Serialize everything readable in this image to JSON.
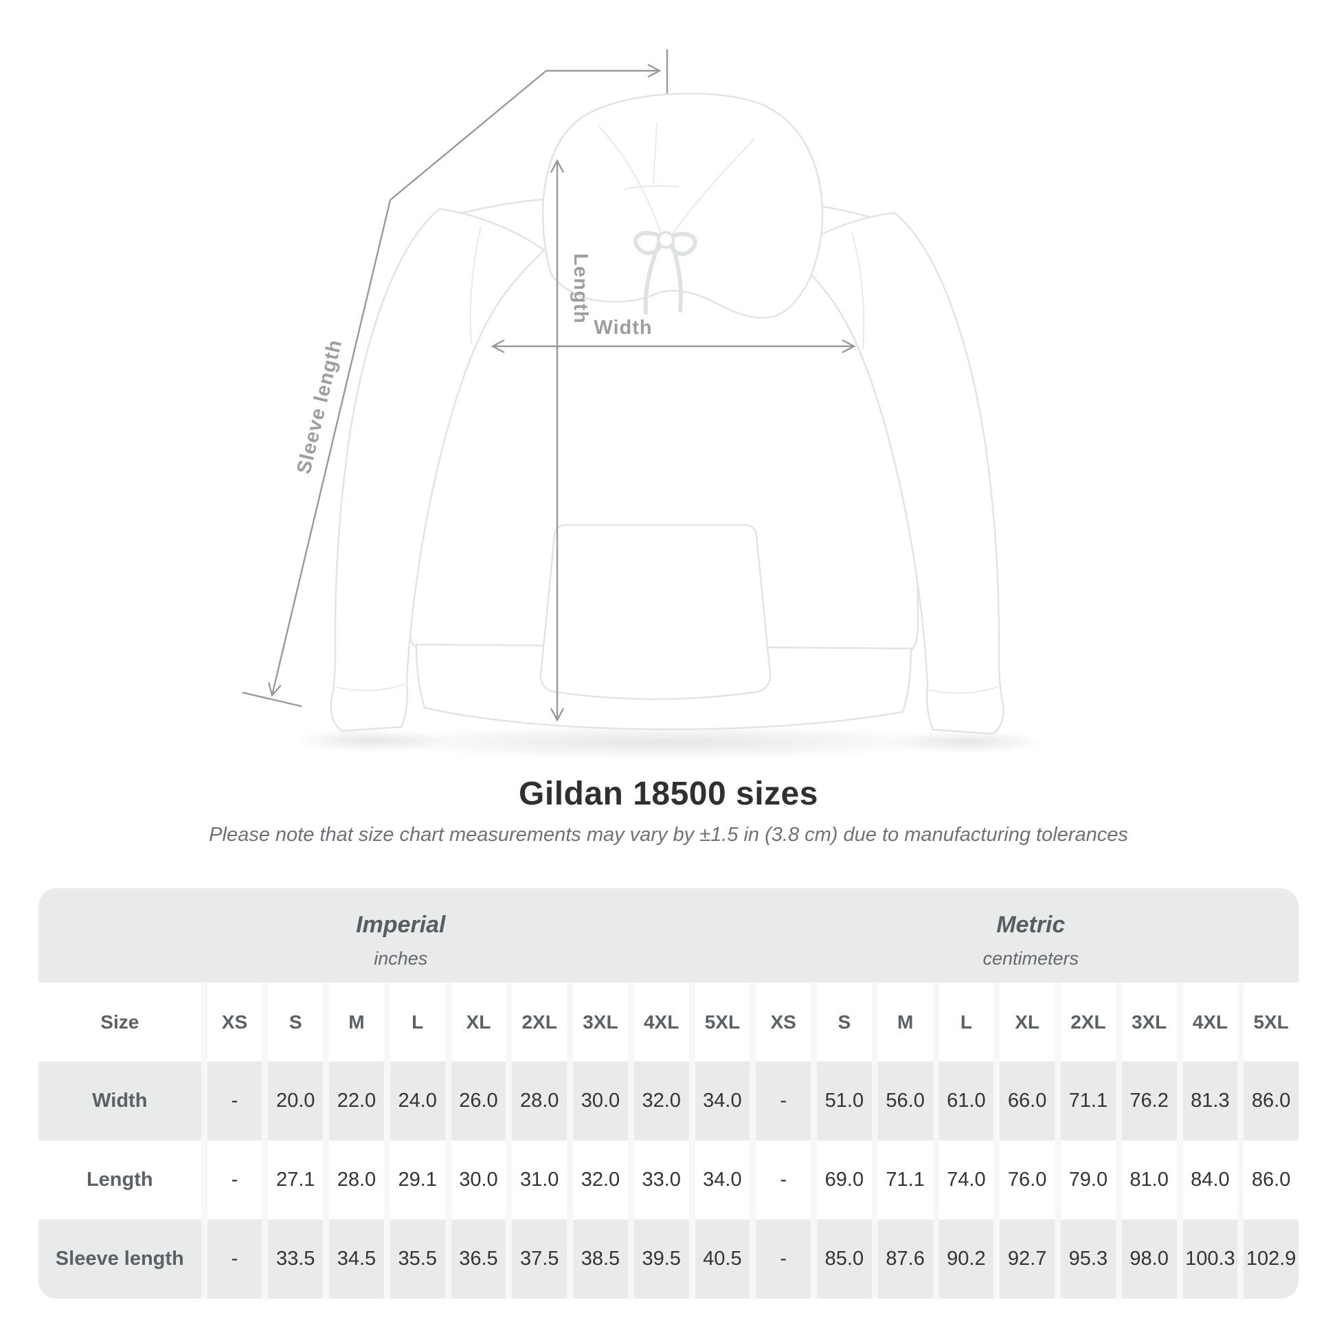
{
  "title": "Gildan 18500 sizes",
  "subtitle": "Please note that size chart measurements may vary by ±1.5 in (3.8 cm) due to manufacturing tolerances",
  "diagram": {
    "length_label": "Length",
    "width_label": "Width",
    "sleeve_label": "Sleeve length"
  },
  "table": {
    "unit_groups": [
      {
        "label": "Imperial",
        "sublabel": "inches"
      },
      {
        "label": "Metric",
        "sublabel": "centimeters"
      }
    ],
    "size_header": "Size",
    "columns": [
      "XS",
      "S",
      "M",
      "L",
      "XL",
      "2XL",
      "3XL",
      "4XL",
      "5XL",
      "XS",
      "S",
      "M",
      "L",
      "XL",
      "2XL",
      "3XL",
      "4XL",
      "5XL"
    ],
    "rows": [
      {
        "label": "Width",
        "values": [
          "-",
          "20.0",
          "22.0",
          "24.0",
          "26.0",
          "28.0",
          "30.0",
          "32.0",
          "34.0",
          "-",
          "51.0",
          "56.0",
          "61.0",
          "66.0",
          "71.1",
          "76.2",
          "81.3",
          "86.0"
        ]
      },
      {
        "label": "Length",
        "values": [
          "-",
          "27.1",
          "28.0",
          "29.1",
          "30.0",
          "31.0",
          "32.0",
          "33.0",
          "34.0",
          "-",
          "69.0",
          "71.1",
          "74.0",
          "76.0",
          "79.0",
          "81.0",
          "84.0",
          "86.0"
        ]
      },
      {
        "label": "Sleeve length",
        "values": [
          "-",
          "33.5",
          "34.5",
          "35.5",
          "36.5",
          "37.5",
          "38.5",
          "39.5",
          "40.5",
          "-",
          "85.0",
          "87.6",
          "90.2",
          "92.7",
          "95.3",
          "98.0",
          "100.3",
          "102.9"
        ]
      }
    ]
  },
  "chart_data": {
    "type": "table",
    "title": "Gildan 18500 sizes",
    "categories": [
      "XS",
      "S",
      "M",
      "L",
      "XL",
      "2XL",
      "3XL",
      "4XL",
      "5XL"
    ],
    "series": [
      {
        "name": "Width (inches)",
        "values": [
          null,
          20.0,
          22.0,
          24.0,
          26.0,
          28.0,
          30.0,
          32.0,
          34.0
        ]
      },
      {
        "name": "Length (inches)",
        "values": [
          null,
          27.1,
          28.0,
          29.1,
          30.0,
          31.0,
          32.0,
          33.0,
          34.0
        ]
      },
      {
        "name": "Sleeve length (inches)",
        "values": [
          null,
          33.5,
          34.5,
          35.5,
          36.5,
          37.5,
          38.5,
          39.5,
          40.5
        ]
      },
      {
        "name": "Width (cm)",
        "values": [
          null,
          51.0,
          56.0,
          61.0,
          66.0,
          71.1,
          76.2,
          81.3,
          86.0
        ]
      },
      {
        "name": "Length (cm)",
        "values": [
          null,
          69.0,
          71.1,
          74.0,
          76.0,
          79.0,
          81.0,
          84.0,
          86.0
        ]
      },
      {
        "name": "Sleeve length (cm)",
        "values": [
          null,
          85.0,
          87.6,
          90.2,
          92.7,
          95.3,
          98.0,
          100.3,
          102.9
        ]
      }
    ]
  },
  "colors": {
    "row_shade": "#e9eaea",
    "separator": "#f6f7f7",
    "dim_line": "#97999c",
    "dim_label": "#9b9fa3",
    "title_text": "#2e3033",
    "muted_text": "#6e7276"
  }
}
